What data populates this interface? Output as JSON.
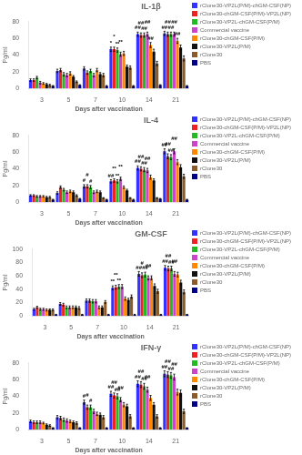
{
  "chart_data": [
    {
      "type": "bar",
      "title": "IL-1β",
      "xlabel": "Days after vaccination",
      "ylabel": "Pg/ml",
      "categories": [
        "3",
        "5",
        "7",
        "10",
        "14",
        "21"
      ],
      "series": [
        {
          "name": "rClone30-VP2L(P/M)-chGM-CSF(NP)",
          "color": "#3333FF",
          "values": [
            10,
            21,
            24,
            47,
            65,
            66
          ],
          "err": [
            1.5,
            2.0,
            2.0,
            2.5,
            2.5,
            2.5
          ]
        },
        {
          "name": "rClone30-chGM-CSF(P/M)-VP2L(NP)",
          "color": "#EE2222",
          "values": [
            10,
            22,
            19,
            47,
            64,
            65
          ],
          "err": [
            1.5,
            2.0,
            2.0,
            2.5,
            2.5,
            2.5
          ]
        },
        {
          "name": "rClone30-VP2L-chGM-CSF(P/M)",
          "color": "#22BB22",
          "values": [
            13,
            17,
            21,
            46,
            64,
            65
          ],
          "err": [
            1.5,
            2.0,
            2.0,
            2.5,
            2.5,
            2.5
          ]
        },
        {
          "name": "Commercial vaccine",
          "color": "#CC44CC",
          "values": [
            7,
            16,
            16,
            41,
            65,
            65
          ],
          "err": [
            1.5,
            2.0,
            2.0,
            2.5,
            2.5,
            2.5
          ]
        },
        {
          "name": "rClone30-chGM-CSF(P/M)",
          "color": "#FF8800",
          "values": [
            6,
            18,
            22,
            42,
            52,
            57
          ],
          "err": [
            1.0,
            2.0,
            2.0,
            2.5,
            3.0,
            3.0
          ]
        },
        {
          "name": "rClone30-VP2L(P/M)",
          "color": "#111111",
          "values": [
            5,
            14,
            17,
            26,
            44,
            49
          ],
          "err": [
            1.0,
            1.5,
            2.0,
            2.0,
            3.0,
            3.0
          ]
        },
        {
          "name": "rClone30",
          "color": "#8B5C2A",
          "values": [
            4,
            8,
            16,
            25,
            30,
            36
          ],
          "err": [
            1.0,
            1.0,
            2.0,
            2.0,
            2.5,
            3.0
          ]
        },
        {
          "name": "PBS",
          "color": "#000088",
          "values": [
            3,
            4,
            3,
            3,
            4,
            3
          ],
          "err": [
            0.5,
            0.5,
            0.5,
            0.5,
            0.5,
            0.5
          ]
        }
      ],
      "ylim": [
        0,
        80
      ],
      "yticks": [
        0,
        20,
        40,
        60,
        80
      ],
      "grid": false,
      "legend": "right",
      "annotations": [
        {
          "x": "10",
          "series": "rClone30-VP2L(P/M)-chGM-CSF(NP)",
          "text": "*"
        },
        {
          "x": "10",
          "series": "rClone30-chGM-CSF(P/M)-VP2L(NP)",
          "text": "*"
        },
        {
          "x": "10",
          "series": "rClone30-VP2L-chGM-CSF(P/M)",
          "text": "**"
        },
        {
          "x": "10",
          "series": "Commercial vaccine",
          "text": "**"
        },
        {
          "x": "14",
          "series": "rClone30-VP2L(P/M)-chGM-CSF(NP)",
          "text": "##"
        },
        {
          "x": "14",
          "series": "rClone30-chGM-CSF(P/M)-VP2L(NP)",
          "text": "##"
        },
        {
          "x": "14",
          "series": "rClone30-VP2L-chGM-CSF(P/M)",
          "text": "##"
        },
        {
          "x": "14",
          "series": "Commercial vaccine",
          "text": "##"
        },
        {
          "x": "14",
          "series": "rClone30-chGM-CSF(P/M)",
          "text": "##"
        },
        {
          "x": "21",
          "series": "rClone30-VP2L(P/M)-chGM-CSF(NP)",
          "text": "##"
        },
        {
          "x": "21",
          "series": "rClone30-chGM-CSF(P/M)-VP2L(NP)",
          "text": "##"
        },
        {
          "x": "21",
          "series": "rClone30-VP2L-chGM-CSF(P/M)",
          "text": "##"
        },
        {
          "x": "21",
          "series": "Commercial vaccine",
          "text": "##"
        },
        {
          "x": "21",
          "series": "rClone30-chGM-CSF(P/M)",
          "text": "##"
        }
      ]
    },
    {
      "type": "bar",
      "title": "IL-4",
      "xlabel": "Days after vaccination",
      "ylabel": "Pg/ml",
      "categories": [
        "3",
        "5",
        "7",
        "10",
        "14",
        "21"
      ],
      "series": [
        {
          "name": "rClone30-VP2L(P/M)-chGM-CSF(NP)",
          "color": "#3333FF",
          "values": [
            8,
            11,
            19,
            25,
            41,
            61
          ],
          "err": [
            1.0,
            1.5,
            2.0,
            2.0,
            2.5,
            3.0
          ]
        },
        {
          "name": "rClone30-chGM-CSF(P/M)-VP2L(NP)",
          "color": "#EE2222",
          "values": [
            8,
            18,
            19,
            26,
            40,
            55
          ],
          "err": [
            1.0,
            1.5,
            2.0,
            2.0,
            2.5,
            3.0
          ]
        },
        {
          "name": "rClone30-VP2L-chGM-CSF(P/M)",
          "color": "#22BB22",
          "values": [
            7,
            15,
            18,
            25,
            39,
            54
          ],
          "err": [
            1.0,
            1.5,
            2.0,
            2.0,
            2.5,
            3.0
          ]
        },
        {
          "name": "Commercial vaccine",
          "color": "#CC44CC",
          "values": [
            7,
            12,
            12,
            28,
            38,
            61
          ],
          "err": [
            1.0,
            1.5,
            1.5,
            2.0,
            2.5,
            3.0
          ]
        },
        {
          "name": "rClone30-chGM-CSF(P/M)",
          "color": "#FF8800",
          "values": [
            7,
            13,
            13,
            18,
            30,
            48
          ],
          "err": [
            1.0,
            1.5,
            1.5,
            1.5,
            2.5,
            3.0
          ]
        },
        {
          "name": "rClone30-VP2L(P/M)",
          "color": "#111111",
          "values": [
            6,
            12,
            12,
            14,
            26,
            42
          ],
          "err": [
            1.0,
            1.5,
            1.5,
            1.5,
            2.0,
            3.0
          ]
        },
        {
          "name": "rClone30",
          "color": "#8B5C2A",
          "values": [
            6,
            8,
            5,
            5,
            5,
            31
          ],
          "err": [
            1.0,
            1.0,
            0.5,
            0.5,
            0.5,
            2.5
          ]
        },
        {
          "name": "PBS",
          "color": "#000088",
          "values": [
            3,
            4,
            3,
            3,
            4,
            3
          ],
          "err": [
            0.5,
            0.5,
            0.5,
            0.5,
            0.5,
            0.5
          ]
        }
      ],
      "ylim": [
        0,
        80
      ],
      "yticks": [
        0,
        20,
        40,
        60,
        80
      ],
      "grid": false,
      "legend": "right",
      "annotations": [
        {
          "x": "7",
          "series": "rClone30-VP2L(P/M)-chGM-CSF(NP)",
          "text": "#"
        },
        {
          "x": "7",
          "series": "rClone30-chGM-CSF(P/M)-VP2L(NP)",
          "text": "#"
        },
        {
          "x": "7",
          "series": "rClone30-VP2L-chGM-CSF(P/M)",
          "text": "#"
        },
        {
          "x": "10",
          "series": "rClone30-VP2L(P/M)-chGM-CSF(NP)",
          "text": "##"
        },
        {
          "x": "10",
          "series": "rClone30-chGM-CSF(P/M)-VP2L(NP)",
          "text": "**"
        },
        {
          "x": "10",
          "series": "rClone30-VP2L-chGM-CSF(P/M)",
          "text": "**"
        },
        {
          "x": "10",
          "series": "Commercial vaccine",
          "text": "**"
        },
        {
          "x": "14",
          "series": "rClone30-VP2L(P/M)-chGM-CSF(NP)",
          "text": "##"
        },
        {
          "x": "14",
          "series": "rClone30-chGM-CSF(P/M)-VP2L(NP)",
          "text": "##"
        },
        {
          "x": "14",
          "series": "rClone30-VP2L-chGM-CSF(P/M)",
          "text": "##"
        },
        {
          "x": "14",
          "series": "Commercial vaccine",
          "text": "##"
        },
        {
          "x": "21",
          "series": "rClone30-VP2L(P/M)-chGM-CSF(NP)",
          "text": "##"
        },
        {
          "x": "21",
          "series": "rClone30-chGM-CSF(P/M)-VP2L(NP)",
          "text": "##"
        },
        {
          "x": "21",
          "series": "rClone30-VP2L-chGM-CSF(P/M)",
          "text": "##"
        },
        {
          "x": "21",
          "series": "Commercial vaccine",
          "text": "##"
        }
      ]
    },
    {
      "type": "bar",
      "title": "GM-CSF",
      "xlabel": "Days after vaccination",
      "ylabel": "Pg/ml",
      "categories": [
        "3",
        "5",
        "7",
        "10",
        "14",
        "21"
      ],
      "series": [
        {
          "name": "rClone30-VP2L(P/M)-chGM-CSF(NP)",
          "color": "#3333FF",
          "values": [
            10,
            18,
            23,
            42,
            63,
            72
          ],
          "err": [
            1.5,
            2.0,
            2.5,
            3.0,
            3.5,
            3.5
          ]
        },
        {
          "name": "rClone30-chGM-CSF(P/M)-VP2L(NP)",
          "color": "#EE2222",
          "values": [
            13,
            17,
            23,
            43,
            61,
            71
          ],
          "err": [
            1.5,
            2.0,
            2.5,
            3.0,
            3.5,
            3.5
          ]
        },
        {
          "name": "rClone30-VP2L-chGM-CSF(P/M)",
          "color": "#22BB22",
          "values": [
            10,
            13,
            22,
            44,
            62,
            71
          ],
          "err": [
            1.5,
            2.0,
            2.5,
            3.0,
            3.5,
            3.5
          ]
        },
        {
          "name": "Commercial vaccine",
          "color": "#CC44CC",
          "values": [
            10,
            13,
            22,
            44,
            57,
            63
          ],
          "err": [
            1.5,
            2.0,
            2.5,
            3.0,
            3.0,
            3.5
          ]
        },
        {
          "name": "rClone30-chGM-CSF(P/M)",
          "color": "#FF8800",
          "values": [
            9,
            13,
            13,
            26,
            57,
            62
          ],
          "err": [
            1.5,
            2.0,
            2.0,
            2.5,
            3.0,
            3.5
          ]
        },
        {
          "name": "rClone30-VP2L(P/M)",
          "color": "#111111",
          "values": [
            9,
            13,
            13,
            24,
            45,
            50
          ],
          "err": [
            1.5,
            2.0,
            2.0,
            2.5,
            3.0,
            3.5
          ]
        },
        {
          "name": "rClone30",
          "color": "#8B5C2A",
          "values": [
            9,
            12,
            21,
            29,
            37,
            36
          ],
          "err": [
            1.5,
            2.0,
            2.0,
            2.5,
            3.0,
            3.0
          ]
        },
        {
          "name": "PBS",
          "color": "#000088",
          "values": [
            2,
            2,
            2,
            2,
            2,
            2
          ],
          "err": [
            0.5,
            0.5,
            0.5,
            0.5,
            0.5,
            0.5
          ]
        }
      ],
      "ylim": [
        0,
        100
      ],
      "yticks": [
        0,
        20,
        40,
        60,
        80,
        100
      ],
      "grid": false,
      "legend": "right",
      "annotations": [
        {
          "x": "10",
          "series": "rClone30-VP2L(P/M)-chGM-CSF(NP)",
          "text": "**"
        },
        {
          "x": "10",
          "series": "rClone30-chGM-CSF(P/M)-VP2L(NP)",
          "text": "**"
        },
        {
          "x": "10",
          "series": "rClone30-VP2L-chGM-CSF(P/M)",
          "text": "**"
        },
        {
          "x": "14",
          "series": "rClone30-VP2L(P/M)-chGM-CSF(NP)",
          "text": "##"
        },
        {
          "x": "14",
          "series": "rClone30-chGM-CSF(P/M)-VP2L(NP)",
          "text": "#"
        },
        {
          "x": "14",
          "series": "rClone30-VP2L-chGM-CSF(P/M)",
          "text": "##"
        },
        {
          "x": "14",
          "series": "Commercial vaccine",
          "text": "##"
        },
        {
          "x": "21",
          "series": "rClone30-VP2L(P/M)-chGM-CSF(NP)",
          "text": "##"
        },
        {
          "x": "21",
          "series": "rClone30-chGM-CSF(P/M)-VP2L(NP)",
          "text": "##"
        },
        {
          "x": "21",
          "series": "rClone30-VP2L-chGM-CSF(P/M)",
          "text": "##"
        },
        {
          "x": "21",
          "series": "Commercial vaccine",
          "text": "##"
        }
      ]
    },
    {
      "type": "bar",
      "title": "IFN-γ",
      "xlabel": "Days after vaccination",
      "ylabel": "Pg/ml",
      "categories": [
        "3",
        "5",
        "7",
        "10",
        "14",
        "21"
      ],
      "series": [
        {
          "name": "rClone30-VP2L(P/M)-chGM-CSF(NP)",
          "color": "#3333FF",
          "values": [
            10,
            15,
            33,
            43,
            55,
            67
          ],
          "err": [
            1.5,
            2.0,
            2.5,
            3.0,
            3.5,
            3.5
          ]
        },
        {
          "name": "rClone30-chGM-CSF(P/M)-VP2L(NP)",
          "color": "#EE2222",
          "values": [
            9,
            14,
            27,
            41,
            54,
            66
          ],
          "err": [
            1.5,
            2.0,
            2.5,
            3.0,
            3.5,
            3.5
          ]
        },
        {
          "name": "rClone30-VP2L-chGM-CSF(P/M)",
          "color": "#22BB22",
          "values": [
            9,
            12,
            27,
            40,
            52,
            65
          ],
          "err": [
            1.5,
            2.0,
            2.5,
            3.0,
            3.5,
            3.5
          ]
        },
        {
          "name": "Commercial vaccine",
          "color": "#CC44CC",
          "values": [
            9,
            11,
            22,
            36,
            48,
            63
          ],
          "err": [
            1.5,
            2.0,
            2.5,
            2.5,
            3.0,
            3.5
          ]
        },
        {
          "name": "rClone30-chGM-CSF(P/M)",
          "color": "#FF8800",
          "values": [
            8,
            10,
            19,
            30,
            38,
            45
          ],
          "err": [
            1.0,
            1.5,
            2.0,
            2.5,
            3.0,
            3.5
          ]
        },
        {
          "name": "rClone30-VP2L(P/M)",
          "color": "#111111",
          "values": [
            6,
            9,
            18,
            28,
            30,
            44
          ],
          "err": [
            1.0,
            1.5,
            2.0,
            2.5,
            2.5,
            3.5
          ]
        },
        {
          "name": "rClone30",
          "color": "#8B5C2A",
          "values": [
            5,
            8,
            15,
            16,
            16,
            22
          ],
          "err": [
            1.0,
            1.5,
            2.0,
            2.0,
            2.0,
            2.5
          ]
        },
        {
          "name": "PBS",
          "color": "#000088",
          "values": [
            2,
            2,
            2,
            2,
            2,
            2
          ],
          "err": [
            0.5,
            0.5,
            0.5,
            0.5,
            0.5,
            0.5
          ]
        }
      ],
      "ylim": [
        0,
        80
      ],
      "yticks": [
        0,
        20,
        40,
        60,
        80
      ],
      "grid": false,
      "legend": "right",
      "annotations": [
        {
          "x": "7",
          "series": "rClone30-VP2L(P/M)-chGM-CSF(NP)",
          "text": "#"
        },
        {
          "x": "7",
          "series": "rClone30-chGM-CSF(P/M)-VP2L(NP)",
          "text": "#"
        },
        {
          "x": "7",
          "series": "rClone30-VP2L-chGM-CSF(P/M)",
          "text": "#"
        },
        {
          "x": "10",
          "series": "rClone30-VP2L(P/M)-chGM-CSF(NP)",
          "text": "##"
        },
        {
          "x": "10",
          "series": "rClone30-chGM-CSF(P/M)-VP2L(NP)",
          "text": "##"
        },
        {
          "x": "10",
          "series": "rClone30-VP2L-chGM-CSF(P/M)",
          "text": "##"
        },
        {
          "x": "10",
          "series": "Commercial vaccine",
          "text": "##"
        },
        {
          "x": "14",
          "series": "rClone30-VP2L(P/M)-chGM-CSF(NP)",
          "text": "##"
        },
        {
          "x": "14",
          "series": "rClone30-chGM-CSF(P/M)-VP2L(NP)",
          "text": "##"
        },
        {
          "x": "14",
          "series": "rClone30-VP2L-chGM-CSF(P/M)",
          "text": "##"
        },
        {
          "x": "14",
          "series": "Commercial vaccine",
          "text": "##"
        },
        {
          "x": "21",
          "series": "rClone30-VP2L(P/M)-chGM-CSF(NP)",
          "text": "##"
        },
        {
          "x": "21",
          "series": "rClone30-chGM-CSF(P/M)-VP2L(NP)",
          "text": "##"
        },
        {
          "x": "21",
          "series": "rClone30-VP2L-chGM-CSF(P/M)",
          "text": "##"
        },
        {
          "x": "21",
          "series": "Commercial vaccine",
          "text": "##"
        }
      ]
    }
  ]
}
